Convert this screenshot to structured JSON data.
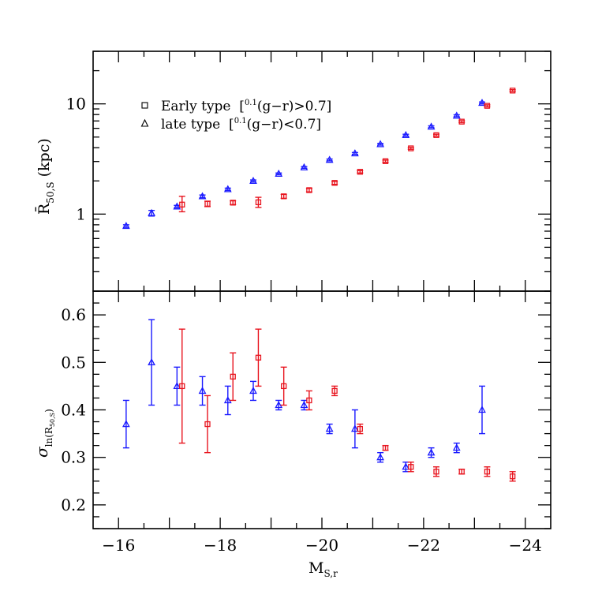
{
  "chart_data": [
    {
      "type": "scatter",
      "panel": "top",
      "yscale": "log",
      "ylabel": "R̄",
      "ylabel_sub": "50,S",
      "ylabel_unit": "(kpc)",
      "ylim": [
        0.2,
        30
      ],
      "yticks": [
        {
          "value": 1,
          "label": "1"
        },
        {
          "value": 10,
          "label": "10"
        }
      ],
      "xlim": [
        -15.5,
        -24.5
      ],
      "legend": {
        "position": "top-left",
        "entries": [
          {
            "marker": "square",
            "label_prefix": "Early type  [",
            "sup": "0.1",
            "label_suffix": "(g−r)>0.7]"
          },
          {
            "marker": "triangle",
            "label_prefix": "late type  [",
            "sup": "0.1",
            "label_suffix": "(g−r)<0.7]"
          }
        ]
      },
      "series": [
        {
          "name": "late type",
          "marker": "triangle",
          "color": "#1a1aff",
          "points": [
            {
              "x": -16.15,
              "y": 0.78,
              "lo": 0.76,
              "hi": 0.8
            },
            {
              "x": -16.65,
              "y": 1.02,
              "lo": 0.96,
              "hi": 1.08
            },
            {
              "x": -17.15,
              "y": 1.17,
              "lo": 1.14,
              "hi": 1.2
            },
            {
              "x": -17.65,
              "y": 1.45,
              "lo": 1.41,
              "hi": 1.49
            },
            {
              "x": -18.15,
              "y": 1.68,
              "lo": 1.64,
              "hi": 1.72
            },
            {
              "x": -18.65,
              "y": 2.0,
              "lo": 1.96,
              "hi": 2.04
            },
            {
              "x": -19.15,
              "y": 2.32,
              "lo": 2.28,
              "hi": 2.36
            },
            {
              "x": -19.65,
              "y": 2.65,
              "lo": 2.6,
              "hi": 2.7
            },
            {
              "x": -20.15,
              "y": 3.1,
              "lo": 3.04,
              "hi": 3.16
            },
            {
              "x": -20.65,
              "y": 3.55,
              "lo": 3.48,
              "hi": 3.62
            },
            {
              "x": -21.15,
              "y": 4.3,
              "lo": 4.22,
              "hi": 4.38
            },
            {
              "x": -21.65,
              "y": 5.2,
              "lo": 5.1,
              "hi": 5.3
            },
            {
              "x": -22.15,
              "y": 6.2,
              "lo": 6.08,
              "hi": 6.32
            },
            {
              "x": -22.65,
              "y": 7.8,
              "lo": 7.64,
              "hi": 7.96
            },
            {
              "x": -23.15,
              "y": 10.2,
              "lo": 10.0,
              "hi": 10.4
            }
          ]
        },
        {
          "name": "Early type",
          "marker": "square",
          "color": "#e8141e",
          "points": [
            {
              "x": -17.25,
              "y": 1.22,
              "lo": 1.05,
              "hi": 1.45
            },
            {
              "x": -17.75,
              "y": 1.24,
              "lo": 1.17,
              "hi": 1.31
            },
            {
              "x": -18.25,
              "y": 1.27,
              "lo": 1.22,
              "hi": 1.32
            },
            {
              "x": -18.75,
              "y": 1.28,
              "lo": 1.15,
              "hi": 1.42
            },
            {
              "x": -19.25,
              "y": 1.45,
              "lo": 1.39,
              "hi": 1.51
            },
            {
              "x": -19.75,
              "y": 1.65,
              "lo": 1.59,
              "hi": 1.71
            },
            {
              "x": -20.25,
              "y": 1.92,
              "lo": 1.86,
              "hi": 1.98
            },
            {
              "x": -20.75,
              "y": 2.42,
              "lo": 2.36,
              "hi": 2.48
            },
            {
              "x": -21.25,
              "y": 3.02,
              "lo": 2.95,
              "hi": 3.09
            },
            {
              "x": -21.75,
              "y": 3.95,
              "lo": 3.87,
              "hi": 4.03
            },
            {
              "x": -22.25,
              "y": 5.2,
              "lo": 5.1,
              "hi": 5.3
            },
            {
              "x": -22.75,
              "y": 6.9,
              "lo": 6.76,
              "hi": 7.04
            },
            {
              "x": -23.25,
              "y": 9.6,
              "lo": 9.4,
              "hi": 9.8
            },
            {
              "x": -23.75,
              "y": 13.2,
              "lo": 12.95,
              "hi": 13.45
            }
          ]
        }
      ]
    },
    {
      "type": "scatter",
      "panel": "bottom",
      "yscale": "linear",
      "ylabel": "σ",
      "ylabel_sub": "ln(R",
      "ylabel_subsub": "50,S",
      "ylabel_close": ")",
      "ylim": [
        0.15,
        0.65
      ],
      "yticks": [
        {
          "value": 0.2,
          "label": "0.2"
        },
        {
          "value": 0.3,
          "label": "0.3"
        },
        {
          "value": 0.4,
          "label": "0.4"
        },
        {
          "value": 0.5,
          "label": "0.5"
        },
        {
          "value": 0.6,
          "label": "0.6"
        }
      ],
      "xlim": [
        -15.5,
        -24.5
      ],
      "xlabel": "M",
      "xlabel_sub": "S,r",
      "xticks": [
        {
          "value": -16,
          "label": "−16"
        },
        {
          "value": -18,
          "label": "−18"
        },
        {
          "value": -20,
          "label": "−20"
        },
        {
          "value": -22,
          "label": "−22"
        },
        {
          "value": -24,
          "label": "−24"
        }
      ],
      "series": [
        {
          "name": "late type",
          "marker": "triangle",
          "color": "#1a1aff",
          "points": [
            {
              "x": -16.15,
              "y": 0.37,
              "lo": 0.32,
              "hi": 0.42
            },
            {
              "x": -16.65,
              "y": 0.5,
              "lo": 0.41,
              "hi": 0.59
            },
            {
              "x": -17.15,
              "y": 0.45,
              "lo": 0.41,
              "hi": 0.49
            },
            {
              "x": -17.65,
              "y": 0.44,
              "lo": 0.41,
              "hi": 0.47
            },
            {
              "x": -18.15,
              "y": 0.42,
              "lo": 0.39,
              "hi": 0.45
            },
            {
              "x": -18.65,
              "y": 0.44,
              "lo": 0.42,
              "hi": 0.46
            },
            {
              "x": -19.15,
              "y": 0.41,
              "lo": 0.4,
              "hi": 0.42
            },
            {
              "x": -19.65,
              "y": 0.41,
              "lo": 0.4,
              "hi": 0.42
            },
            {
              "x": -20.15,
              "y": 0.36,
              "lo": 0.35,
              "hi": 0.37
            },
            {
              "x": -20.65,
              "y": 0.36,
              "lo": 0.32,
              "hi": 0.4
            },
            {
              "x": -21.15,
              "y": 0.3,
              "lo": 0.29,
              "hi": 0.31
            },
            {
              "x": -21.65,
              "y": 0.28,
              "lo": 0.27,
              "hi": 0.29
            },
            {
              "x": -22.15,
              "y": 0.31,
              "lo": 0.3,
              "hi": 0.32
            },
            {
              "x": -22.65,
              "y": 0.32,
              "lo": 0.31,
              "hi": 0.33
            },
            {
              "x": -23.15,
              "y": 0.4,
              "lo": 0.35,
              "hi": 0.45
            }
          ]
        },
        {
          "name": "Early type",
          "marker": "square",
          "color": "#e8141e",
          "points": [
            {
              "x": -17.25,
              "y": 0.45,
              "lo": 0.33,
              "hi": 0.57
            },
            {
              "x": -17.75,
              "y": 0.37,
              "lo": 0.31,
              "hi": 0.43
            },
            {
              "x": -18.25,
              "y": 0.47,
              "lo": 0.42,
              "hi": 0.52
            },
            {
              "x": -18.75,
              "y": 0.51,
              "lo": 0.45,
              "hi": 0.57
            },
            {
              "x": -19.25,
              "y": 0.45,
              "lo": 0.41,
              "hi": 0.49
            },
            {
              "x": -19.75,
              "y": 0.42,
              "lo": 0.4,
              "hi": 0.44
            },
            {
              "x": -20.25,
              "y": 0.44,
              "lo": 0.43,
              "hi": 0.45
            },
            {
              "x": -20.75,
              "y": 0.36,
              "lo": 0.35,
              "hi": 0.37
            },
            {
              "x": -21.25,
              "y": 0.32,
              "lo": 0.315,
              "hi": 0.325
            },
            {
              "x": -21.75,
              "y": 0.28,
              "lo": 0.27,
              "hi": 0.29
            },
            {
              "x": -22.25,
              "y": 0.27,
              "lo": 0.26,
              "hi": 0.28
            },
            {
              "x": -22.75,
              "y": 0.27,
              "lo": 0.265,
              "hi": 0.275
            },
            {
              "x": -23.25,
              "y": 0.27,
              "lo": 0.26,
              "hi": 0.28
            },
            {
              "x": -23.75,
              "y": 0.26,
              "lo": 0.25,
              "hi": 0.27
            }
          ]
        }
      ]
    }
  ]
}
